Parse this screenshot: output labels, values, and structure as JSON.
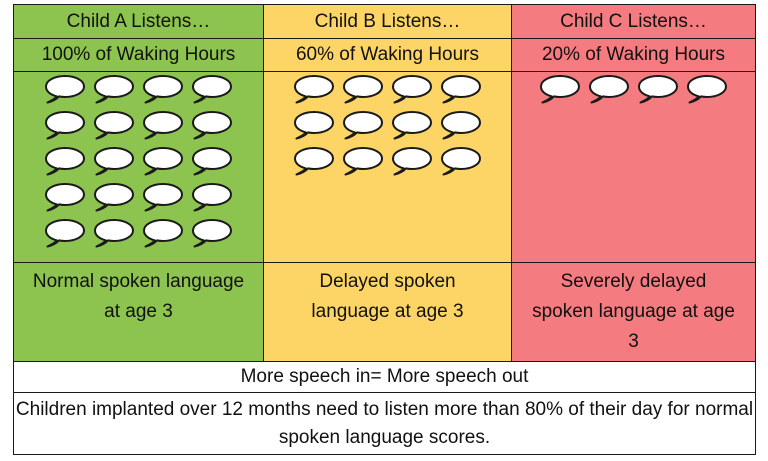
{
  "children": [
    {
      "title": "Child A Listens…",
      "percent": "100% of Waking Hours",
      "speech_bubbles": 20,
      "outcome": "Normal spoken language at age 3",
      "color": "#8dc34f"
    },
    {
      "title": "Child B Listens…",
      "percent": "60% of Waking Hours",
      "speech_bubbles": 12,
      "outcome": "Delayed spoken language at age 3",
      "color": "#fdd566"
    },
    {
      "title": "Child C Listens…",
      "percent": "20% of Waking Hours",
      "speech_bubbles": 4,
      "outcome": "Severely delayed spoken language at age 3",
      "color": "#f47b7f"
    }
  ],
  "motto": "More speech in= More speech out",
  "note": "Children implanted over 12 months need to listen more than 80% of their day for normal spoken language scores.",
  "icon": "speech-bubble-icon"
}
